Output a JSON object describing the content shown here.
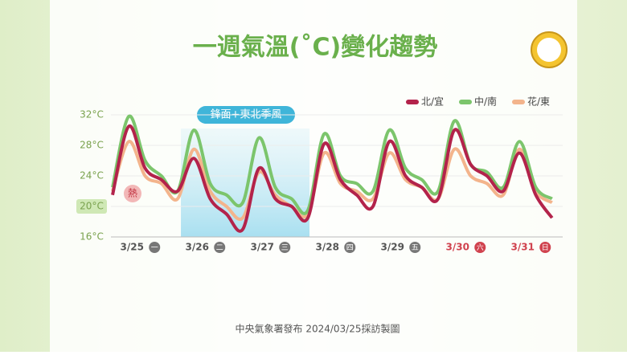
{
  "chart_data": {
    "type": "line",
    "title": "一週氣溫(˚C)變化趨勢",
    "source": "中央氣象署發布 2024/03/25採訪製圖",
    "annotation": "鋒面+東北季風",
    "hot_label": "熱",
    "categories": [
      null,
      "3/25",
      null,
      null,
      null,
      "3/26",
      null,
      null,
      null,
      "3/27",
      null,
      null,
      null,
      "3/28",
      null,
      null,
      null,
      "3/29",
      null,
      null,
      null,
      "3/30",
      null,
      null,
      null,
      "3/31",
      null,
      null
    ],
    "weekday_labels": [
      "一",
      "二",
      "三",
      "四",
      "五",
      "六",
      "日"
    ],
    "series": [
      {
        "name": "北/宜",
        "color": "#b3234b",
        "values": [
          21.5,
          30.5,
          25,
          23.5,
          22,
          26.3,
          21,
          19,
          17,
          25,
          21,
          20,
          18.5,
          28.2,
          23.5,
          21.5,
          20,
          28.5,
          24,
          22.5,
          21,
          30,
          25.5,
          24,
          22,
          27,
          21.5,
          18.5
        ]
      },
      {
        "name": "中/南",
        "color": "#7cc56c",
        "values": [
          22.5,
          31.8,
          26,
          24,
          22,
          30,
          23,
          21.5,
          20.5,
          29,
          22.5,
          21,
          19.5,
          29.5,
          24,
          23,
          22,
          30,
          25,
          23.5,
          22,
          31.2,
          25.5,
          24.5,
          22.5,
          28.5,
          22.5,
          21
        ]
      },
      {
        "name": "花/東",
        "color": "#f3b48c",
        "values": [
          22,
          28.5,
          24,
          23,
          21,
          27.5,
          22,
          20,
          18.5,
          24.5,
          21.5,
          20,
          19,
          27,
          23,
          22,
          21,
          27,
          23.5,
          22.5,
          21,
          27.5,
          24,
          23,
          21.5,
          27.5,
          22,
          20.5
        ]
      }
    ],
    "ylim": [
      16,
      32
    ],
    "yticks": [
      {
        "value": 16,
        "label": "16°C"
      },
      {
        "value": 20,
        "label": "20°C"
      },
      {
        "value": 24,
        "label": "24°C"
      },
      {
        "value": 28,
        "label": "28°C"
      },
      {
        "value": 32,
        "label": "32°C"
      }
    ],
    "grid": true
  }
}
